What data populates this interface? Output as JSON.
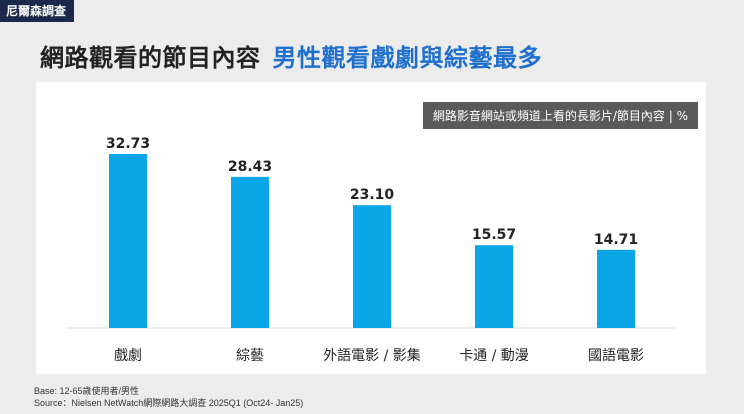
{
  "tag": "尼爾森調查",
  "headline": {
    "main": "網路觀看的節目內容",
    "highlight": "男性觀看戲劇與綜藝最多"
  },
  "legend": "網路影音網站或頻道上看的長影片/節目內容 | %",
  "footnote": {
    "base": "Base: 12-65歲使用者/男性",
    "source": "Source：Nielsen NetWatch網際網路大調查  2025Q1 (Oct24- Jan25)"
  },
  "colors": {
    "bar": "#0aa6e8",
    "accent": "#1f6fcf",
    "tag_bg": "#1b2a4a"
  },
  "chart_data": {
    "type": "bar",
    "categories": [
      "戲劇",
      "綜藝",
      "外語電影 / 影集",
      "卡通 / 動漫",
      "國語電影"
    ],
    "values": [
      32.73,
      28.43,
      23.1,
      15.57,
      14.71
    ],
    "value_labels": [
      "32.73",
      "28.43",
      "23.10",
      "15.57",
      "14.71"
    ],
    "ylim": [
      0,
      35
    ],
    "grid": false
  }
}
